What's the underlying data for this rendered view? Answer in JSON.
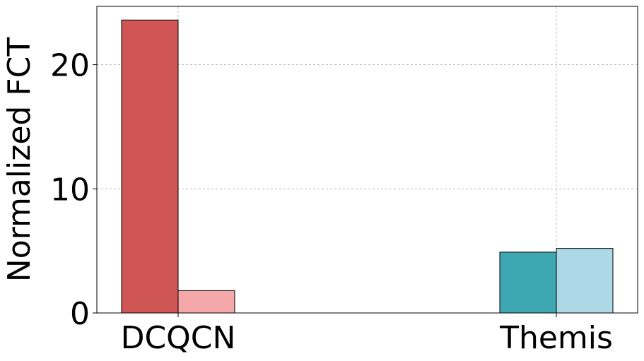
{
  "chart_data": {
    "type": "bar",
    "categories": [
      "DCQCN",
      "Themis"
    ],
    "series": [
      {
        "values": [
          23.6,
          4.9
        ],
        "colors": [
          "#d05555",
          "#3ea7b2"
        ]
      },
      {
        "values": [
          1.8,
          5.2
        ],
        "colors": [
          "#f5a8aa",
          "#add8e6"
        ]
      }
    ],
    "title": "",
    "xlabel": "",
    "ylabel": "Normalized FCT",
    "ylim": [
      0,
      24.7
    ],
    "yticks": [
      0,
      10,
      20
    ],
    "grid": true
  }
}
